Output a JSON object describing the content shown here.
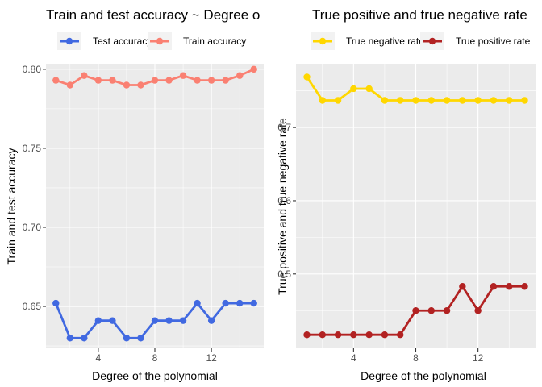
{
  "chart_data": [
    {
      "type": "line",
      "title": "Train and test accuracy ~ Degree o",
      "xlabel": "Degree of the polynomial",
      "ylabel": "Train and test accuracy",
      "xlim": [
        0.3,
        15.7
      ],
      "ylim": [
        0.6235,
        0.803
      ],
      "x_ticks": [
        4,
        8,
        12
      ],
      "y_ticks": [
        0.65,
        0.7,
        0.75,
        0.8
      ],
      "y_tick_labels": [
        "0.65",
        "0.70",
        "0.75",
        "0.80"
      ],
      "x": [
        1,
        2,
        3,
        4,
        5,
        6,
        7,
        8,
        9,
        10,
        11,
        12,
        13,
        14,
        15
      ],
      "legend_position": "top",
      "grid": true,
      "series": [
        {
          "name": "Test accuracy",
          "color": "#4169e1",
          "values": [
            0.652,
            0.63,
            0.63,
            0.641,
            0.641,
            0.63,
            0.63,
            0.641,
            0.641,
            0.641,
            0.652,
            0.641,
            0.652,
            0.652,
            0.652
          ]
        },
        {
          "name": "Train accuracy",
          "color": "#fa8072",
          "values": [
            0.793,
            0.79,
            0.796,
            0.793,
            0.793,
            0.79,
            0.79,
            0.793,
            0.793,
            0.796,
            0.793,
            0.793,
            0.793,
            0.796,
            0.8
          ]
        }
      ]
    },
    {
      "type": "line",
      "title": "True positive and true negative rate",
      "xlabel": "Degree of the polynomial",
      "ylabel": "True positive and true negative rate",
      "xlim": [
        0.3,
        15.7
      ],
      "ylim": [
        0.3985,
        0.786
      ],
      "x_ticks": [
        4,
        8,
        12
      ],
      "y_ticks": [
        0.5,
        0.6,
        0.7
      ],
      "y_tick_labels": [
        "0.5",
        "0.6",
        "0.7"
      ],
      "x": [
        1,
        2,
        3,
        4,
        5,
        6,
        7,
        8,
        9,
        10,
        11,
        12,
        13,
        14,
        15
      ],
      "legend_position": "top",
      "grid": true,
      "series": [
        {
          "name": "True negative rate",
          "color": "#ffd700",
          "values": [
            0.769,
            0.737,
            0.737,
            0.753,
            0.753,
            0.737,
            0.737,
            0.737,
            0.737,
            0.737,
            0.737,
            0.737,
            0.737,
            0.737,
            0.737
          ]
        },
        {
          "name": "True positive rate",
          "color": "#b22222",
          "values": [
            0.417,
            0.417,
            0.417,
            0.417,
            0.417,
            0.417,
            0.417,
            0.45,
            0.45,
            0.45,
            0.483,
            0.45,
            0.483,
            0.483,
            0.483
          ]
        }
      ]
    }
  ]
}
